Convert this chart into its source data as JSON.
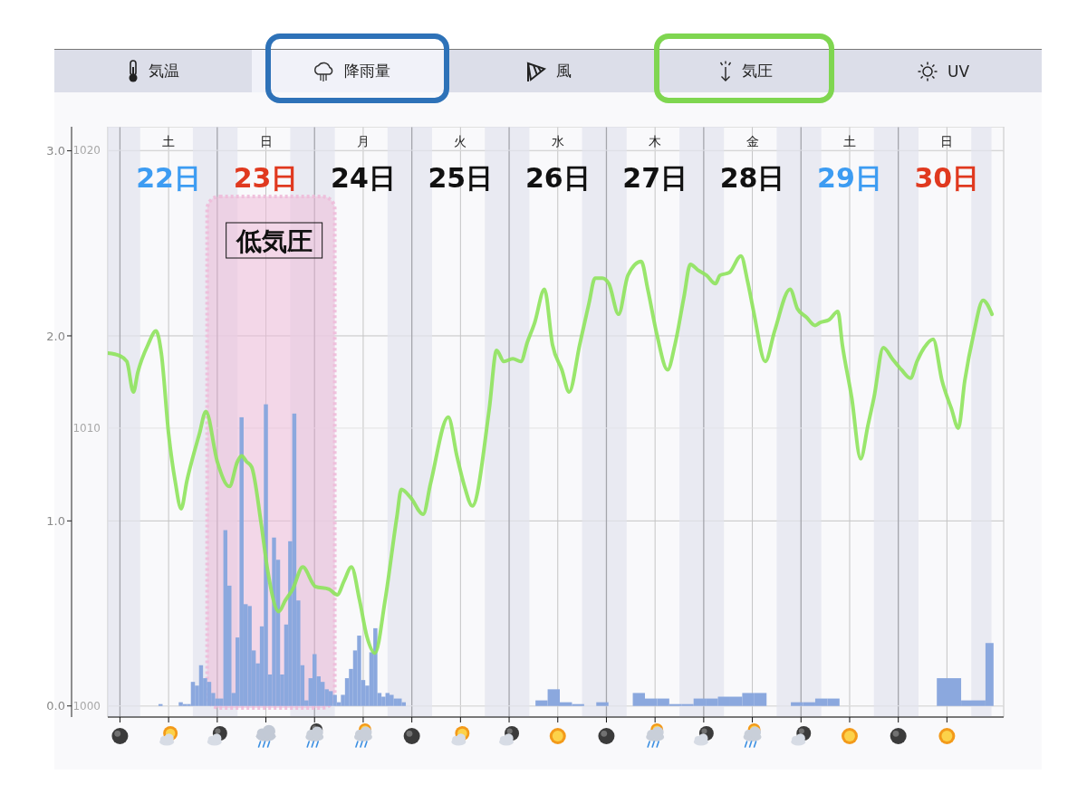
{
  "chart_data": {
    "type": "histogram",
    "annotations": [
      "気温",
      "降雨量",
      "風",
      "気圧",
      "UV",
      "土",
      "日",
      "月",
      "火",
      "水",
      "木",
      "金",
      "土",
      "日"
    ],
    "series": [
      {
        "color": "#8ba8de",
        "bins": [
          21.896,
          21.938,
          22.104,
          22.146,
          22.188,
          22.229,
          22.271,
          22.313,
          22.354,
          22.396,
          22.438,
          22.479,
          22.521,
          22.563,
          22.604,
          22.646,
          22.688,
          22.729,
          22.771,
          22.813,
          22.854,
          22.896,
          22.938,
          22.979,
          23.021,
          23.063,
          23.104,
          23.146,
          23.188,
          23.229,
          23.271,
          23.313,
          23.354,
          23.396,
          23.438,
          23.479,
          23.521,
          23.563,
          23.604,
          23.646,
          23.688,
          23.729,
          23.771,
          23.813,
          23.854,
          23.896,
          23.938,
          23.979,
          24.021,
          24.063,
          24.104,
          24.146,
          24.188,
          24.229,
          24.271,
          24.313,
          24.354,
          24.396,
          24.438,
          25.771,
          25.896,
          26.021,
          26.146,
          26.271,
          26.396,
          26.521,
          26.771,
          26.896,
          27.021,
          27.146,
          27.271,
          27.396,
          27.521,
          27.646,
          27.771,
          27.896,
          28.021,
          28.146,
          28.396,
          28.521,
          28.646,
          28.771,
          28.896,
          29.896,
          30.146,
          30.396,
          30.479
        ],
        "values": [
          0.01,
          null,
          0.02,
          0.01,
          0.01,
          0.13,
          0.11,
          0.22,
          0.15,
          0.13,
          0.07,
          0.04,
          0.04,
          0.95,
          0.65,
          0.07,
          0.37,
          1.56,
          0.55,
          0.54,
          0.3,
          0.23,
          0.43,
          1.63,
          0.17,
          0.91,
          0.79,
          0.17,
          0.44,
          0.89,
          1.58,
          0.57,
          0.22,
          0.03,
          0.15,
          0.28,
          0.16,
          0.13,
          0.09,
          0.08,
          0.06,
          0.02,
          0.06,
          0.15,
          0.2,
          0.3,
          0.38,
          0.14,
          0.11,
          0.29,
          0.42,
          0.07,
          0.05,
          0.07,
          0.06,
          0.04,
          0.04,
          0.02,
          null,
          0.03,
          0.09,
          0.02,
          0.01,
          null,
          0.02,
          null,
          0.07,
          0.04,
          0.04,
          0.01,
          0.01,
          0.04,
          0.04,
          0.05,
          0.05,
          0.07,
          0.07,
          null,
          0.02,
          0.02,
          0.04,
          0.04,
          null,
          0.15,
          0.03,
          0.34
        ]
      },
      {
        "type": "line",
        "axis": "y2",
        "color": "#8ee35c",
        "x": [
          21.375,
          21.5,
          21.571,
          21.638,
          21.683,
          21.788,
          21.871,
          21.925,
          22.0,
          22.067,
          22.129,
          22.188,
          22.317,
          22.383,
          22.5,
          22.625,
          22.708,
          22.75,
          22.8,
          22.854,
          22.95,
          23.017,
          23.133,
          23.2,
          23.275,
          23.379,
          23.508,
          23.65,
          23.733,
          23.804,
          23.879,
          23.963,
          24.038,
          24.121,
          24.225,
          24.346,
          24.392,
          24.488,
          24.617,
          24.692,
          24.875,
          24.963,
          25.042,
          25.121,
          25.296,
          25.371,
          25.446,
          25.538,
          25.621,
          25.688,
          25.763,
          25.863,
          25.946,
          26.042,
          26.117,
          26.225,
          26.321,
          26.383,
          26.458,
          26.525,
          26.625,
          26.721,
          26.858,
          26.925,
          27.017,
          27.129,
          27.204,
          27.296,
          27.363,
          27.438,
          27.529,
          27.621,
          27.667,
          27.763,
          27.883,
          27.95,
          28.013,
          28.133,
          28.229,
          28.388,
          28.463,
          28.554,
          28.646,
          28.696,
          28.788,
          28.879,
          28.925,
          29.021,
          29.113,
          29.188,
          29.25,
          29.346,
          29.438,
          29.533,
          29.625,
          29.692,
          29.767,
          29.858,
          29.95,
          30.046,
          30.117,
          30.183,
          30.275,
          30.371,
          30.463
        ],
        "values": [
          1012.7,
          1012.6,
          1012.4,
          1011.3,
          1012.0,
          1013.0,
          1013.5,
          1012.7,
          1009.8,
          1008.1,
          1007.1,
          1008.1,
          1009.8,
          1010.6,
          1008.8,
          1007.9,
          1008.8,
          1009.0,
          1008.8,
          1008.6,
          1006.6,
          1004.9,
          1003.4,
          1003.8,
          1004.2,
          1005.0,
          1004.3,
          1004.2,
          1004.0,
          1004.5,
          1005.0,
          1003.8,
          1002.5,
          1001.9,
          1003.8,
          1006.8,
          1007.8,
          1007.5,
          1006.9,
          1008.0,
          1010.4,
          1009.0,
          1007.9,
          1007.2,
          1010.7,
          1012.8,
          1012.4,
          1012.5,
          1012.4,
          1013.1,
          1013.8,
          1015.0,
          1013.0,
          1012.1,
          1011.3,
          1013.0,
          1014.5,
          1015.4,
          1015.4,
          1015.2,
          1014.1,
          1015.5,
          1016.0,
          1015.0,
          1013.4,
          1012.1,
          1013.0,
          1014.7,
          1015.9,
          1015.7,
          1015.5,
          1015.2,
          1015.5,
          1015.6,
          1016.2,
          1015.3,
          1014.2,
          1012.4,
          1013.5,
          1015.0,
          1014.3,
          1014.0,
          1013.7,
          1013.8,
          1013.9,
          1014.2,
          1013.0,
          1011.1,
          1008.9,
          1010.1,
          1011.1,
          1012.9,
          1012.5,
          1012.1,
          1011.8,
          1012.4,
          1012.9,
          1013.2,
          1011.7,
          1010.7,
          1010.0,
          1011.7,
          1013.4,
          1014.6,
          1014.1
        ]
      }
    ],
    "xlim": [
      21.375,
      30.583
    ],
    "xticks": [
      {
        "value": 21.5,
        "label": null
      },
      {
        "value": 22,
        "label": "22日"
      },
      {
        "value": 22.5,
        "label": null
      },
      {
        "value": 23,
        "label": "23日"
      },
      {
        "value": 23.5,
        "label": null
      },
      {
        "value": 24,
        "label": "24日"
      },
      {
        "value": 24.5,
        "label": null
      },
      {
        "value": 25,
        "label": "25日"
      },
      {
        "value": 25.5,
        "label": null
      },
      {
        "value": 26,
        "label": "26日"
      },
      {
        "value": 26.5,
        "label": null
      },
      {
        "value": 27,
        "label": "27日"
      },
      {
        "value": 27.5,
        "label": null
      },
      {
        "value": 28,
        "label": "28日"
      },
      {
        "value": 28.5,
        "label": null
      },
      {
        "value": 29,
        "label": "29日"
      },
      {
        "value": 29.5,
        "label": null
      },
      {
        "value": 30,
        "label": "30日"
      }
    ],
    "ylim": [
      -0.06,
      3.13
    ],
    "yticks": [
      {
        "value": 0,
        "label": "0.0"
      },
      {
        "value": 1,
        "label": "1.0"
      },
      {
        "value": 2,
        "label": "2.0"
      },
      {
        "value": 3,
        "label": "3.0"
      }
    ],
    "y2lim": [
      999.6,
      1020.85
    ],
    "y2ticks": [
      1000,
      1010,
      1020
    ],
    "grid": true,
    "bands": [
      {
        "axis": "x",
        "from": 21.375,
        "to": 21.708,
        "color": "#e2e4ee"
      },
      {
        "axis": "x",
        "from": 22.25,
        "to": 22.708,
        "color": "#e2e4ee"
      },
      {
        "axis": "x",
        "from": 23.25,
        "to": 23.708,
        "color": "#e2e4ee"
      },
      {
        "axis": "x",
        "from": 24.25,
        "to": 24.708,
        "color": "#e2e4ee"
      },
      {
        "axis": "x",
        "from": 25.25,
        "to": 25.708,
        "color": "#e2e4ee"
      },
      {
        "axis": "x",
        "from": 26.25,
        "to": 26.708,
        "color": "#e2e4ee"
      },
      {
        "axis": "x",
        "from": 27.25,
        "to": 27.708,
        "color": "#e2e4ee"
      },
      {
        "axis": "x",
        "from": 28.25,
        "to": 28.708,
        "color": "#e2e4ee"
      },
      {
        "axis": "x",
        "from": 29.25,
        "to": 29.708,
        "color": "#e2e4ee"
      },
      {
        "axis": "x",
        "from": 30.25,
        "to": 30.458,
        "color": "#e2e4ee"
      },
      {
        "axis": "x",
        "from": 22.396,
        "to": 23.708,
        "label": "低気圧",
        "color": "#eebbd9"
      }
    ]
  }
}
